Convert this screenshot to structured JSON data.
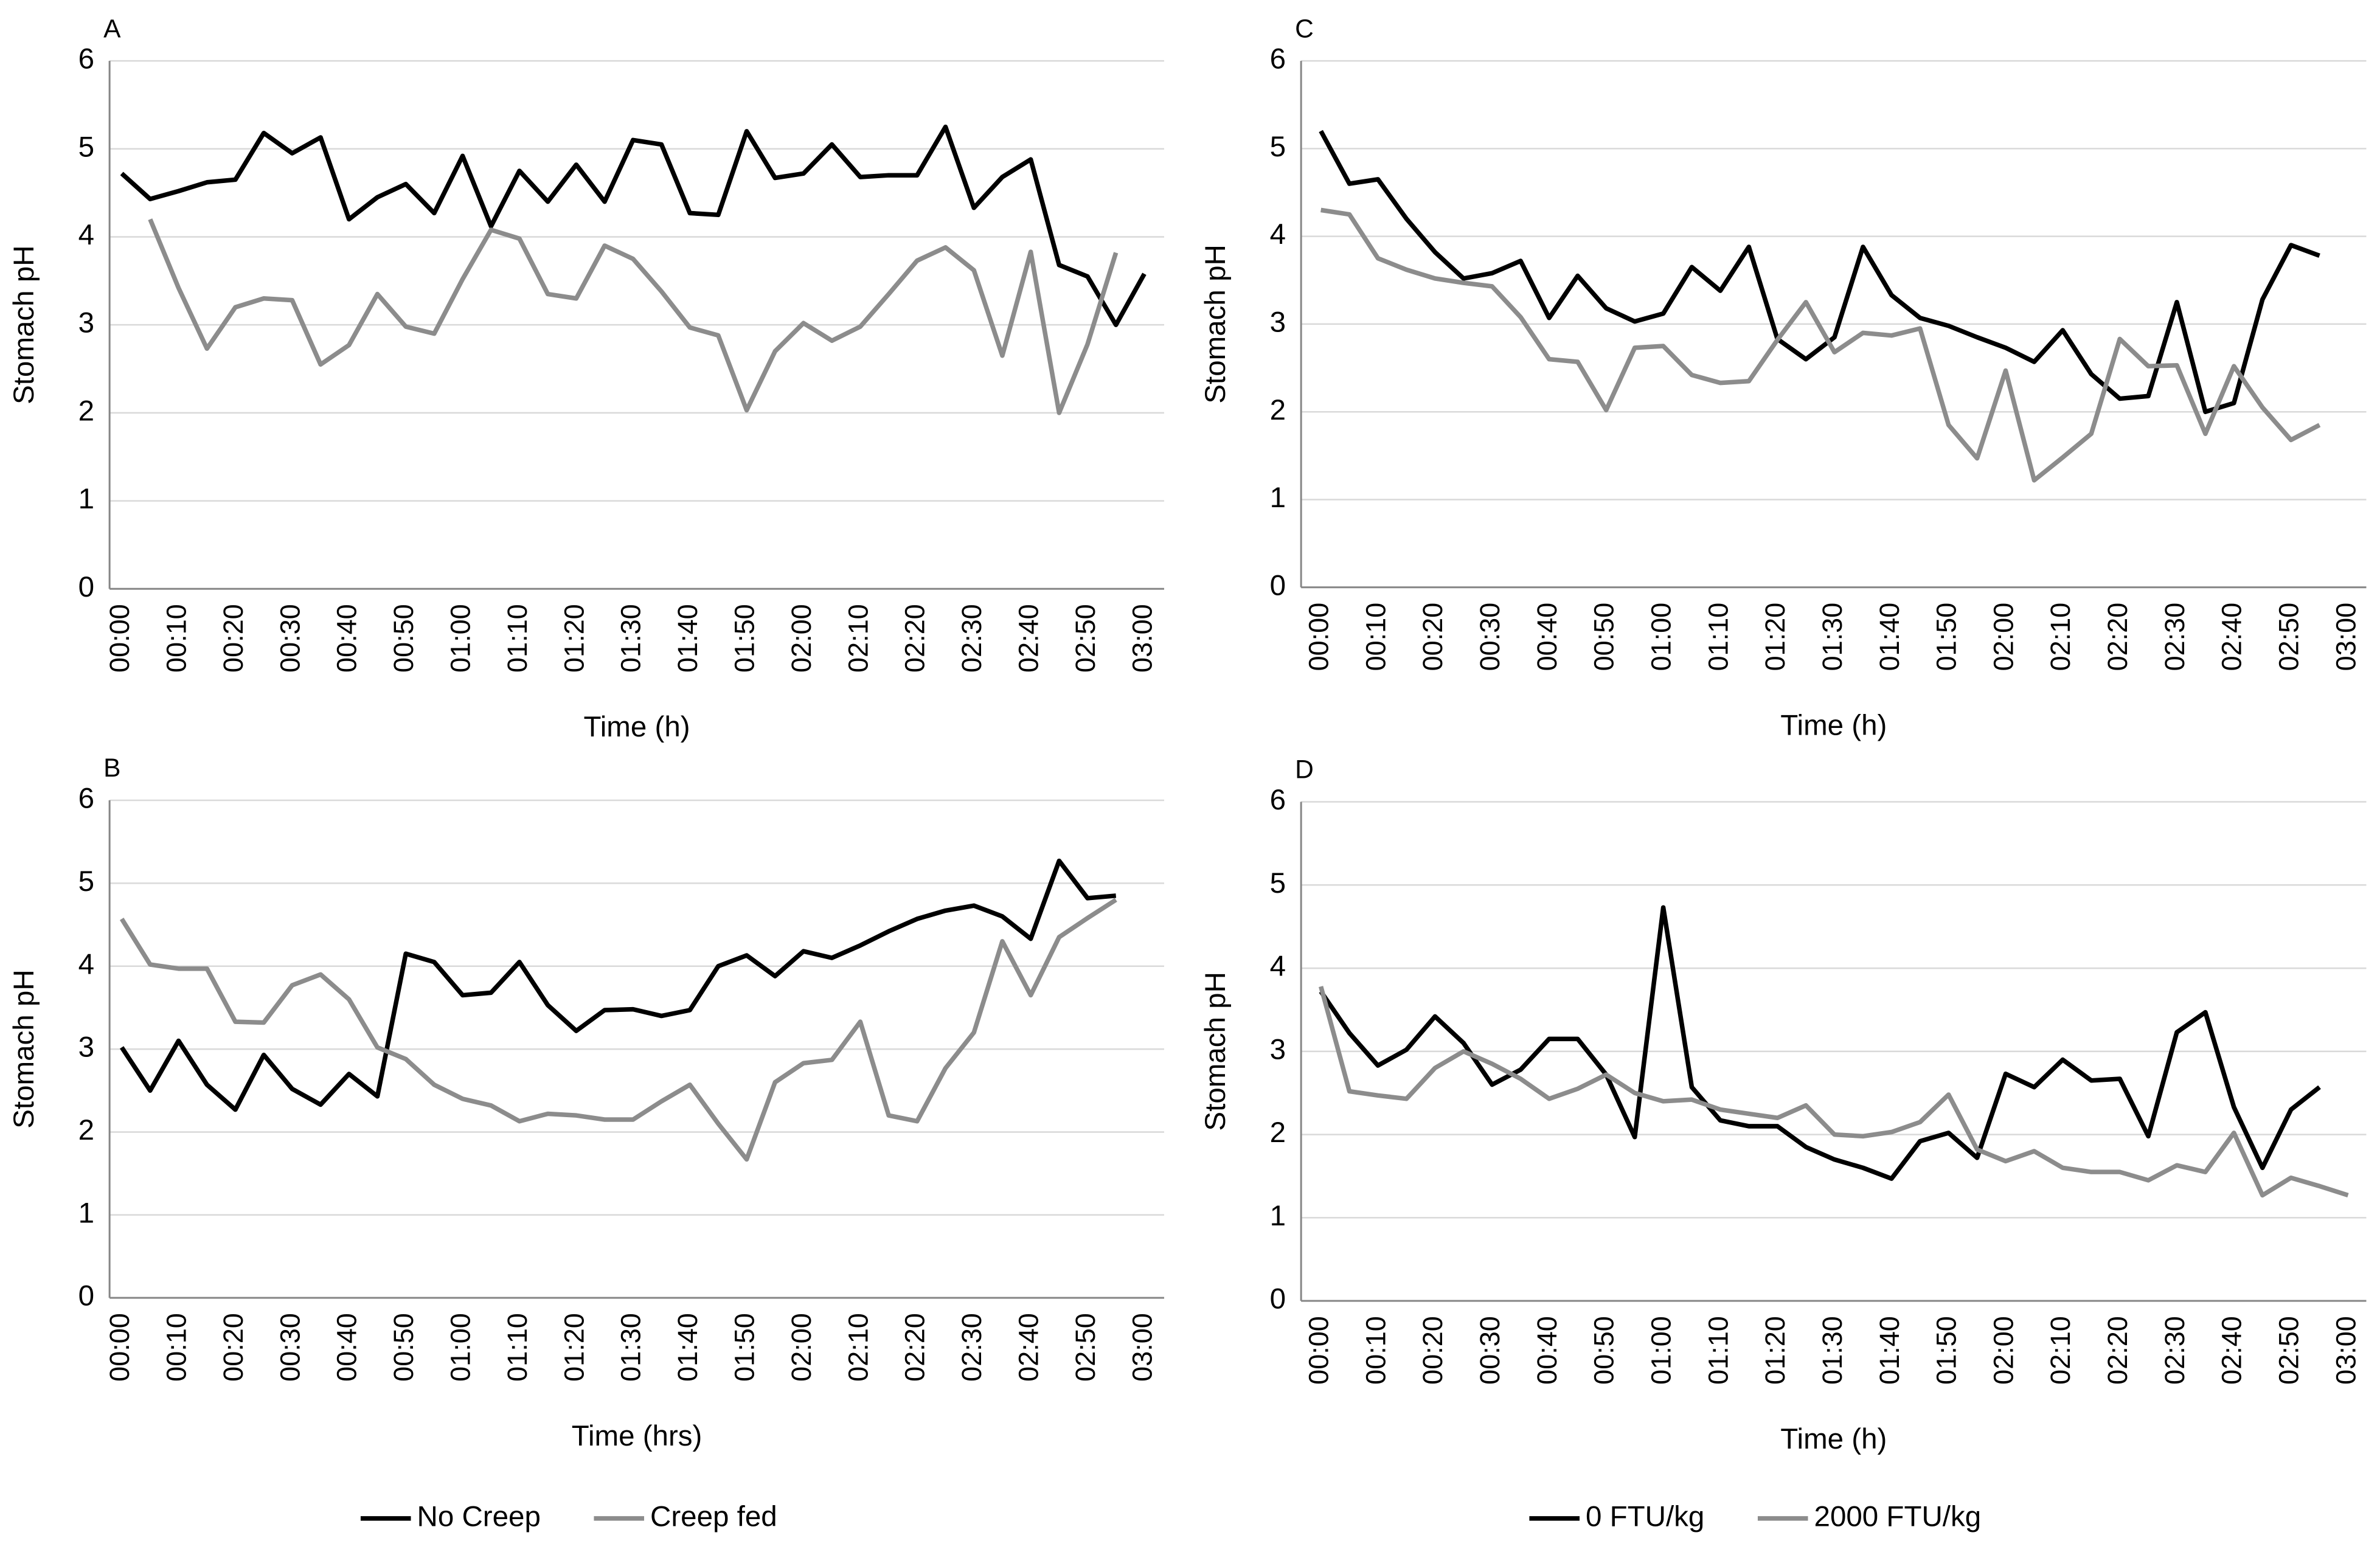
{
  "chart_data": [
    {
      "type": "line",
      "title": "A",
      "x_label": "Time (h)",
      "y_label": "Stomach pH",
      "categories": [
        "00:00",
        null,
        "00:10",
        null,
        "00:20",
        null,
        "00:30",
        null,
        "00:40",
        null,
        "00:50",
        null,
        "01:00",
        null,
        "01:10",
        null,
        "01:20",
        null,
        "01:30",
        null,
        "01:40",
        null,
        "01:50",
        null,
        "02:00",
        null,
        "02:10",
        null,
        "02:20",
        null,
        "02:30",
        null,
        "02:40",
        null,
        "02:50",
        null,
        "03:00"
      ],
      "ylim": [
        0,
        6
      ],
      "yticks": [
        0,
        1,
        2,
        3,
        4,
        5,
        6
      ],
      "grid": true,
      "series": [
        {
          "color": "#000000",
          "values": [
            4.72,
            4.43,
            4.52,
            4.62,
            4.65,
            5.18,
            4.95,
            5.13,
            4.2,
            4.45,
            4.6,
            4.27,
            4.92,
            4.12,
            4.75,
            4.4,
            4.82,
            4.4,
            5.1,
            5.05,
            4.27,
            4.25,
            5.2,
            4.67,
            4.72,
            5.05,
            4.68,
            4.7,
            4.7,
            5.25,
            4.33,
            4.68,
            4.88,
            3.68,
            3.55,
            3.0,
            3.58
          ]
        },
        {
          "color": "#8c8c8c",
          "values": [
            null,
            4.2,
            3.42,
            2.73,
            3.2,
            3.3,
            3.28,
            2.55,
            2.77,
            3.35,
            2.98,
            2.9,
            3.52,
            4.08,
            3.98,
            3.35,
            3.3,
            3.9,
            3.75,
            3.38,
            2.97,
            2.88,
            2.03,
            2.7,
            3.02,
            2.82,
            2.98,
            3.35,
            3.73,
            3.88,
            3.62,
            2.65,
            3.83,
            2.0,
            2.78,
            3.82,
            null
          ]
        }
      ]
    },
    {
      "type": "line",
      "title": "B",
      "x_label": "Time (hrs)",
      "y_label": "Stomach pH",
      "categories": [
        "00:00",
        null,
        "00:10",
        null,
        "00:20",
        null,
        "00:30",
        null,
        "00:40",
        null,
        "00:50",
        null,
        "01:00",
        null,
        "01:10",
        null,
        "01:20",
        null,
        "01:30",
        null,
        "01:40",
        null,
        "01:50",
        null,
        "02:00",
        null,
        "02:10",
        null,
        "02:20",
        null,
        "02:30",
        null,
        "02:40",
        null,
        "02:50",
        null,
        "03:00"
      ],
      "ylim": [
        0,
        6
      ],
      "yticks": [
        0,
        1,
        2,
        3,
        4,
        5,
        6
      ],
      "grid": true,
      "series": [
        {
          "name": "No Creep",
          "color": "#000000",
          "values": [
            3.02,
            2.5,
            3.1,
            2.57,
            2.27,
            2.93,
            2.52,
            2.33,
            2.7,
            2.43,
            4.15,
            4.05,
            3.65,
            3.68,
            4.05,
            3.53,
            3.22,
            3.47,
            3.48,
            3.4,
            3.47,
            4.0,
            4.13,
            3.88,
            4.18,
            4.1,
            4.25,
            4.42,
            4.57,
            4.67,
            4.73,
            4.6,
            4.33,
            5.27,
            4.82,
            4.85,
            null
          ]
        },
        {
          "name": "Creep fed",
          "color": "#8c8c8c",
          "values": [
            4.57,
            4.02,
            3.97,
            3.97,
            3.33,
            3.32,
            3.77,
            3.9,
            3.6,
            3.02,
            2.88,
            2.57,
            2.4,
            2.32,
            2.13,
            2.22,
            2.2,
            2.15,
            2.15,
            2.37,
            2.57,
            2.1,
            1.67,
            2.6,
            2.83,
            2.87,
            3.33,
            2.2,
            2.13,
            2.77,
            3.2,
            4.3,
            3.65,
            4.35,
            4.58,
            4.8,
            null
          ]
        }
      ]
    },
    {
      "type": "line",
      "title": "C",
      "x_label": "Time (h)",
      "y_label": "Stomach pH",
      "categories": [
        "00:00",
        null,
        "00:10",
        null,
        "00:20",
        null,
        "00:30",
        null,
        "00:40",
        null,
        "00:50",
        null,
        "01:00",
        null,
        "01:10",
        null,
        "01:20",
        null,
        "01:30",
        null,
        "01:40",
        null,
        "01:50",
        null,
        "02:00",
        null,
        "02:10",
        null,
        "02:20",
        null,
        "02:30",
        null,
        "02:40",
        null,
        "02:50",
        null,
        "03:00"
      ],
      "ylim": [
        0,
        6
      ],
      "yticks": [
        0,
        1,
        2,
        3,
        4,
        5,
        6
      ],
      "grid": true,
      "series": [
        {
          "color": "#000000",
          "values": [
            5.2,
            4.6,
            4.65,
            4.2,
            3.82,
            3.52,
            3.58,
            3.72,
            3.07,
            3.55,
            3.18,
            3.03,
            3.12,
            3.65,
            3.38,
            3.88,
            2.83,
            2.6,
            2.85,
            3.88,
            3.33,
            3.07,
            2.98,
            2.85,
            2.73,
            2.57,
            2.93,
            2.43,
            2.15,
            2.18,
            3.25,
            2.0,
            2.1,
            3.28,
            3.9,
            3.78,
            null
          ]
        },
        {
          "color": "#8c8c8c",
          "values": [
            4.3,
            4.25,
            3.75,
            3.62,
            3.52,
            3.47,
            3.43,
            3.08,
            2.6,
            2.57,
            2.02,
            2.73,
            2.75,
            2.42,
            2.33,
            2.35,
            2.82,
            3.25,
            2.68,
            2.9,
            2.87,
            2.95,
            1.85,
            1.47,
            2.47,
            1.22,
            1.48,
            1.75,
            2.83,
            2.52,
            2.53,
            1.75,
            2.52,
            2.05,
            1.68,
            1.85,
            null
          ]
        }
      ]
    },
    {
      "type": "line",
      "title": "D",
      "x_label": "Time (h)",
      "y_label": "Stomach pH",
      "categories": [
        "00:00",
        null,
        "00:10",
        null,
        "00:20",
        null,
        "00:30",
        null,
        "00:40",
        null,
        "00:50",
        null,
        "01:00",
        null,
        "01:10",
        null,
        "01:20",
        null,
        "01:30",
        null,
        "01:40",
        null,
        "01:50",
        null,
        "02:00",
        null,
        "02:10",
        null,
        "02:20",
        null,
        "02:30",
        null,
        "02:40",
        null,
        "02:50",
        null,
        "03:00"
      ],
      "ylim": [
        0,
        6
      ],
      "yticks": [
        0,
        1,
        2,
        3,
        4,
        5,
        6
      ],
      "grid": true,
      "series": [
        {
          "name": "0 FTU/kg",
          "color": "#000000",
          "values": [
            3.72,
            3.22,
            2.83,
            3.02,
            3.42,
            3.1,
            2.6,
            2.78,
            3.15,
            3.15,
            2.72,
            1.97,
            4.73,
            2.57,
            2.17,
            2.1,
            2.1,
            1.85,
            1.7,
            1.6,
            1.47,
            1.92,
            2.02,
            1.72,
            2.73,
            2.57,
            2.9,
            2.65,
            2.67,
            1.98,
            3.23,
            3.47,
            2.33,
            1.6,
            2.3,
            2.57,
            null
          ]
        },
        {
          "name": "2000 FTU/kg",
          "color": "#8c8c8c",
          "values": [
            3.78,
            2.52,
            2.47,
            2.43,
            2.8,
            3.0,
            2.85,
            2.67,
            2.43,
            2.55,
            2.72,
            2.5,
            2.4,
            2.42,
            2.3,
            2.25,
            2.2,
            2.35,
            2.0,
            1.98,
            2.03,
            2.15,
            2.48,
            1.82,
            1.68,
            1.8,
            1.6,
            1.55,
            1.55,
            1.45,
            1.63,
            1.55,
            2.02,
            1.27,
            1.48,
            1.38,
            1.27
          ]
        }
      ]
    }
  ]
}
